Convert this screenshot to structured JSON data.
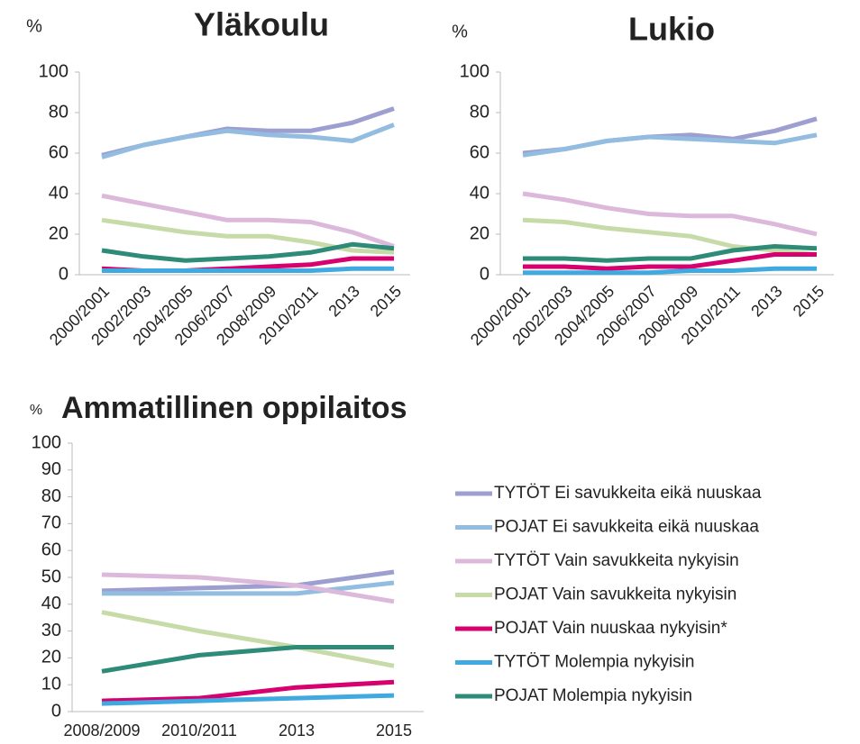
{
  "chart_data": [
    {
      "type": "line",
      "title": "Yläkoulu",
      "unit": "%",
      "categories": [
        "2000/2001",
        "2002/2003",
        "2004/2005",
        "2006/2007",
        "2008/2009",
        "2010/2011",
        "2013",
        "2015"
      ],
      "ylim": [
        0,
        100
      ],
      "yticks": [
        0,
        20,
        40,
        60,
        80,
        100
      ],
      "series": [
        {
          "color": "#9c9fd0",
          "values": [
            59,
            64,
            68,
            72,
            71,
            71,
            75,
            82
          ]
        },
        {
          "color": "#93bde0",
          "values": [
            58,
            64,
            68,
            71,
            69,
            68,
            66,
            74
          ]
        },
        {
          "color": "#dcb8da",
          "values": [
            39,
            35,
            31,
            27,
            27,
            26,
            21,
            14
          ]
        },
        {
          "color": "#c7dba8",
          "values": [
            27,
            24,
            21,
            19,
            19,
            16,
            12,
            11
          ]
        },
        {
          "color": "#d6006f",
          "values": [
            3,
            2,
            2,
            3,
            4,
            5,
            8,
            8
          ]
        },
        {
          "color": "#3fa9e0",
          "values": [
            2,
            2,
            2,
            2,
            2,
            2,
            3,
            3
          ]
        },
        {
          "color": "#2e8b78",
          "values": [
            12,
            9,
            7,
            8,
            9,
            11,
            15,
            13
          ]
        }
      ]
    },
    {
      "type": "line",
      "title": "Lukio",
      "unit": "%",
      "categories": [
        "2000/2001",
        "2002/2003",
        "2004/2005",
        "2006/2007",
        "2008/2009",
        "2010/2011",
        "2013",
        "2015"
      ],
      "ylim": [
        0,
        100
      ],
      "yticks": [
        0,
        20,
        40,
        60,
        80,
        100
      ],
      "series": [
        {
          "color": "#9c9fd0",
          "values": [
            60,
            62,
            66,
            68,
            69,
            67,
            71,
            77
          ]
        },
        {
          "color": "#93bde0",
          "values": [
            59,
            62,
            66,
            68,
            67,
            66,
            65,
            69
          ]
        },
        {
          "color": "#dcb8da",
          "values": [
            40,
            37,
            33,
            30,
            29,
            29,
            25,
            20
          ]
        },
        {
          "color": "#c7dba8",
          "values": [
            27,
            26,
            23,
            21,
            19,
            14,
            12,
            10
          ]
        },
        {
          "color": "#d6006f",
          "values": [
            4,
            4,
            3,
            4,
            4,
            7,
            10,
            10
          ]
        },
        {
          "color": "#3fa9e0",
          "values": [
            1,
            1,
            1,
            1,
            2,
            2,
            3,
            3
          ]
        },
        {
          "color": "#2e8b78",
          "values": [
            8,
            8,
            7,
            8,
            8,
            12,
            14,
            13
          ]
        }
      ]
    },
    {
      "type": "line",
      "title": "Ammatillinen oppilaitos",
      "unit": "%",
      "categories": [
        "2008/2009",
        "2010/2011",
        "2013",
        "2015"
      ],
      "ylim": [
        0,
        100
      ],
      "yticks": [
        0,
        10,
        20,
        30,
        40,
        50,
        60,
        70,
        80,
        90,
        100
      ],
      "series": [
        {
          "name": "TYTÖT Ei savukkeita eikä nuuskaa",
          "color": "#9c9fd0",
          "values": [
            45,
            46,
            47,
            52
          ]
        },
        {
          "name": "POJAT Ei savukkeita eikä nuuskaa",
          "color": "#93bde0",
          "values": [
            44,
            44,
            44,
            48
          ]
        },
        {
          "name": "TYTÖT Vain savukkeita nykyisin",
          "color": "#dcb8da",
          "values": [
            51,
            50,
            47,
            41
          ]
        },
        {
          "name": "POJAT Vain savukkeita nykyisin",
          "color": "#c7dba8",
          "values": [
            37,
            30,
            24,
            17
          ]
        },
        {
          "name": "POJAT Vain nuuskaa nykyisin*",
          "color": "#d6006f",
          "values": [
            4,
            5,
            9,
            11
          ]
        },
        {
          "name": "TYTÖT Molempia nykyisin",
          "color": "#3fa9e0",
          "values": [
            3,
            4,
            5,
            6
          ]
        },
        {
          "name": "POJAT Molempia nykyisin",
          "color": "#2e8b78",
          "values": [
            15,
            21,
            24,
            24
          ]
        }
      ]
    }
  ]
}
